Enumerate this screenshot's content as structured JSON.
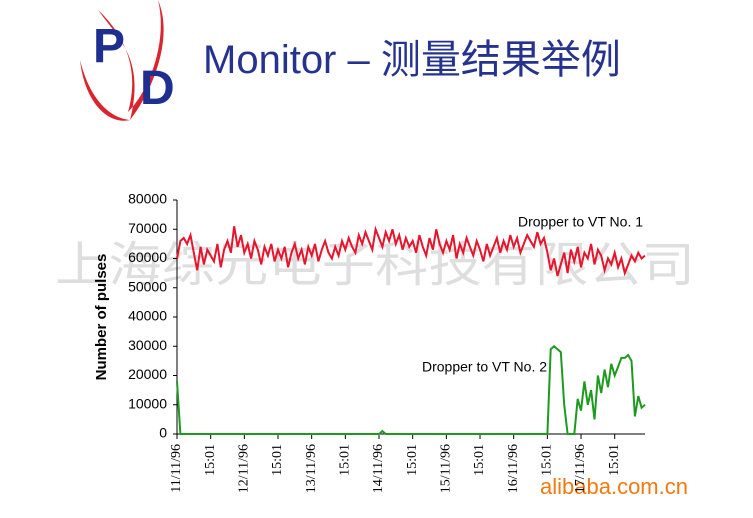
{
  "logo": [
    "P",
    "D"
  ],
  "heading": "Monitor – 测量结果举例",
  "watermark": "上海综元电子科技有限公司",
  "site": "alibaba.com.cn",
  "chart_data": {
    "type": "line",
    "ylabel": "Number of pulses",
    "ylim": [
      0,
      80000
    ],
    "yticks": [
      0,
      10000,
      20000,
      30000,
      40000,
      50000,
      60000,
      70000,
      80000
    ],
    "xlim": [
      0,
      139
    ],
    "xticks": [
      {
        "value": 0,
        "label": "11/11/96"
      },
      {
        "value": 10,
        "label": "15:01"
      },
      {
        "value": 20,
        "label": "12/11/96"
      },
      {
        "value": 30,
        "label": "15:01"
      },
      {
        "value": 40,
        "label": "13/11/96"
      },
      {
        "value": 50,
        "label": "15:01"
      },
      {
        "value": 60,
        "label": "14/11/96"
      },
      {
        "value": 70,
        "label": "15:01"
      },
      {
        "value": 80,
        "label": "15/11/96"
      },
      {
        "value": 90,
        "label": "15:01"
      },
      {
        "value": 100,
        "label": "16/11/96"
      },
      {
        "value": 110,
        "label": "15:01"
      },
      {
        "value": 120,
        "label": "17/11/96"
      },
      {
        "value": 130,
        "label": "15:01"
      }
    ],
    "series": [
      {
        "name": "Dropper to VT No. 1",
        "color": "#e8142c",
        "values": [
          60000,
          66000,
          67000,
          65000,
          68000,
          62000,
          56000,
          64000,
          58000,
          63000,
          61000,
          59000,
          65000,
          57000,
          63000,
          66000,
          62000,
          71000,
          64000,
          68000,
          62000,
          65000,
          60000,
          66000,
          63000,
          58000,
          64000,
          61000,
          65000,
          59000,
          63000,
          60000,
          64000,
          57000,
          62000,
          65000,
          60000,
          63000,
          58000,
          64000,
          61000,
          65000,
          59000,
          63000,
          66000,
          62000,
          60000,
          64000,
          61000,
          66000,
          63000,
          67000,
          64000,
          62000,
          68000,
          65000,
          69000,
          66000,
          63000,
          70000,
          67000,
          64000,
          69000,
          66000,
          70000,
          65000,
          68000,
          63000,
          67000,
          64000,
          66000,
          62000,
          68000,
          64000,
          61000,
          67000,
          63000,
          70000,
          65000,
          62000,
          66000,
          63000,
          68000,
          60000,
          65000,
          62000,
          67000,
          64000,
          61000,
          66000,
          63000,
          59000,
          65000,
          61000,
          64000,
          67000,
          62000,
          66000,
          63000,
          68000,
          64000,
          67000,
          62000,
          65000,
          68000,
          66000,
          64000,
          69000,
          65000,
          67000,
          62000,
          56000,
          60000,
          54000,
          58000,
          62000,
          55000,
          63000,
          59000,
          64000,
          57000,
          62000,
          60000,
          65000,
          58000,
          63000,
          61000,
          56000,
          60000,
          58000,
          62000,
          57000,
          60000,
          55000,
          58000,
          61000,
          59000,
          62000,
          60000,
          61000
        ]
      },
      {
        "name": "Dropper to VT No. 2",
        "color": "#1e9a1e",
        "values": [
          18000,
          0,
          0,
          0,
          0,
          0,
          0,
          0,
          0,
          0,
          0,
          0,
          0,
          0,
          0,
          0,
          0,
          0,
          0,
          0,
          0,
          0,
          0,
          0,
          0,
          0,
          0,
          0,
          0,
          0,
          0,
          0,
          0,
          0,
          0,
          0,
          0,
          0,
          0,
          0,
          0,
          0,
          0,
          0,
          0,
          0,
          0,
          0,
          0,
          0,
          0,
          0,
          0,
          0,
          0,
          0,
          0,
          0,
          0,
          0,
          0,
          1000,
          0,
          0,
          0,
          0,
          0,
          0,
          0,
          0,
          0,
          0,
          0,
          0,
          0,
          0,
          0,
          0,
          0,
          0,
          0,
          0,
          0,
          0,
          0,
          0,
          0,
          0,
          0,
          0,
          0,
          0,
          0,
          0,
          0,
          0,
          0,
          0,
          0,
          0,
          0,
          0,
          0,
          0,
          0,
          0,
          0,
          0,
          0,
          0,
          0,
          29000,
          30000,
          29000,
          28000,
          10000,
          0,
          0,
          0,
          12000,
          8000,
          18000,
          10000,
          15000,
          5000,
          20000,
          14000,
          22000,
          16000,
          24000,
          20000,
          23000,
          26000,
          26000,
          27000,
          25000,
          6000,
          13000,
          9000,
          10000
        ]
      }
    ]
  }
}
